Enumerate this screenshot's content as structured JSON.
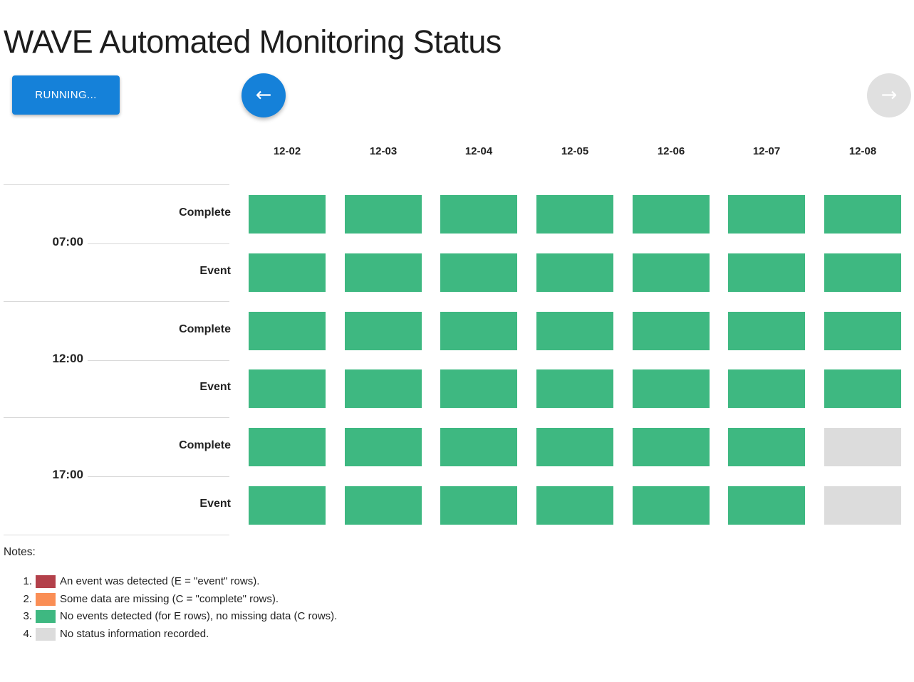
{
  "title": "WAVE Automated Monitoring Status",
  "controls": {
    "running_label": "RUNNING...",
    "prev_icon": "←",
    "next_icon": "→"
  },
  "colors": {
    "accent_blue": "#1581d9",
    "disabled_gray": "#e0e0e0",
    "divider": "#d9d9d9",
    "status": {
      "event": "#b3404a",
      "missing": "#fa8e55",
      "ok": "#3eb881",
      "none": "#dcdcdc"
    }
  },
  "chart": {
    "type": "heatmap",
    "columns": [
      "12-02",
      "12-03",
      "12-04",
      "12-05",
      "12-06",
      "12-07",
      "12-08"
    ],
    "row_groups": [
      {
        "time": "07:00",
        "rows": [
          {
            "label": "Complete",
            "cells": [
              "ok",
              "ok",
              "ok",
              "ok",
              "ok",
              "ok",
              "ok"
            ]
          },
          {
            "label": "Event",
            "cells": [
              "ok",
              "ok",
              "ok",
              "ok",
              "ok",
              "ok",
              "ok"
            ]
          }
        ]
      },
      {
        "time": "12:00",
        "rows": [
          {
            "label": "Complete",
            "cells": [
              "ok",
              "ok",
              "ok",
              "ok",
              "ok",
              "ok",
              "ok"
            ]
          },
          {
            "label": "Event",
            "cells": [
              "ok",
              "ok",
              "ok",
              "ok",
              "ok",
              "ok",
              "ok"
            ]
          }
        ]
      },
      {
        "time": "17:00",
        "rows": [
          {
            "label": "Complete",
            "cells": [
              "ok",
              "ok",
              "ok",
              "ok",
              "ok",
              "ok",
              "none"
            ]
          },
          {
            "label": "Event",
            "cells": [
              "ok",
              "ok",
              "ok",
              "ok",
              "ok",
              "ok",
              "none"
            ]
          }
        ]
      }
    ]
  },
  "notes": {
    "heading": "Notes:",
    "items": [
      {
        "num": "1.",
        "status": "event",
        "text": "An event was detected (E = \"event\" rows)."
      },
      {
        "num": "2.",
        "status": "missing",
        "text": "Some data are missing (C = \"complete\" rows)."
      },
      {
        "num": "3.",
        "status": "ok",
        "text": "No events detected (for E rows), no missing data (C rows)."
      },
      {
        "num": "4.",
        "status": "none",
        "text": "No status information recorded."
      }
    ]
  }
}
